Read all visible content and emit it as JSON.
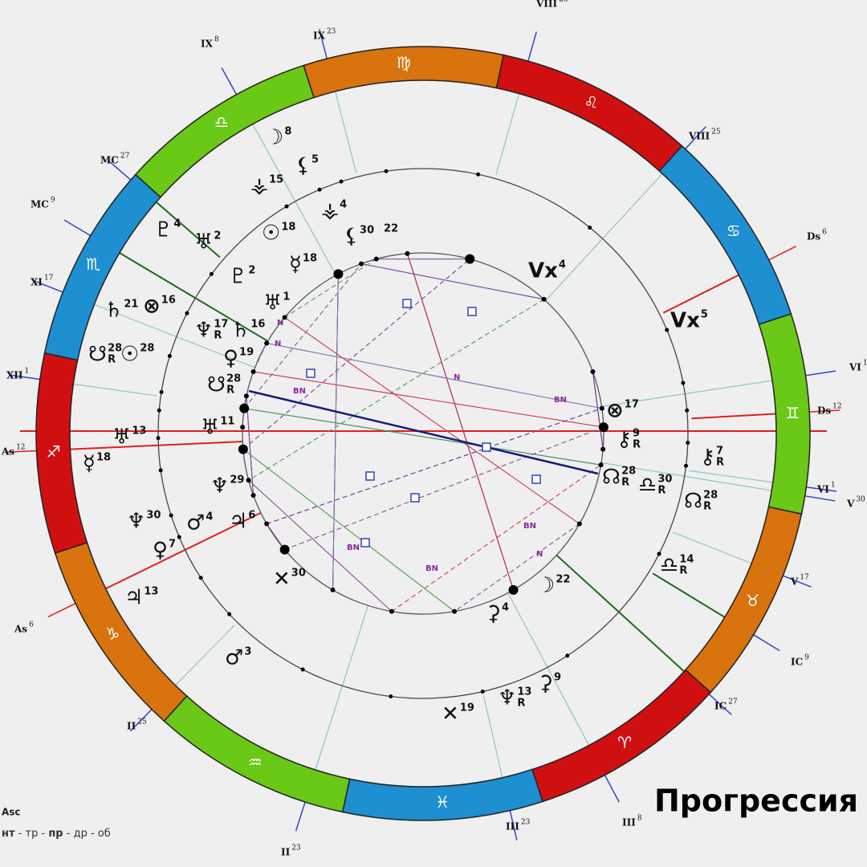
{
  "title": "Прогрессия",
  "legend": {
    "point": "Asc",
    "modes": [
      "нт",
      "тр",
      "пр",
      "др",
      "об"
    ],
    "separator": "-"
  },
  "signs": [
    {
      "glyph": "♍",
      "color": "#d9730d"
    },
    {
      "glyph": "♌",
      "color": "#d01010"
    },
    {
      "glyph": "♋",
      "color": "#1e8fd0"
    },
    {
      "glyph": "♊",
      "color": "#6ac816"
    },
    {
      "glyph": "♉",
      "color": "#d9730d"
    },
    {
      "glyph": "♈",
      "color": "#d01010"
    },
    {
      "glyph": "♓",
      "color": "#1e8fd0"
    },
    {
      "glyph": "♒",
      "color": "#6ac816"
    },
    {
      "glyph": "♑",
      "color": "#d9730d"
    },
    {
      "glyph": "♐",
      "color": "#d01010"
    },
    {
      "glyph": "♏",
      "color": "#1e8fd0"
    },
    {
      "glyph": "♎",
      "color": "#6ac816"
    }
  ],
  "cusps": [
    {
      "label": "VIII",
      "degree": "23"
    },
    {
      "label": "IX",
      "degree": "8"
    },
    {
      "label": "IX",
      "degree": "23"
    },
    {
      "label": "VIII",
      "degree": "25"
    },
    {
      "label": "MC",
      "degree": "27"
    },
    {
      "label": "MC",
      "degree": "9"
    },
    {
      "label": "Ds",
      "degree": "6"
    },
    {
      "label": "XI",
      "degree": "17"
    },
    {
      "label": "XII",
      "degree": "1"
    },
    {
      "label": "VI",
      "degree": "1"
    },
    {
      "label": "Ds",
      "degree": "12"
    },
    {
      "label": "As",
      "degree": "12"
    },
    {
      "label": "VI",
      "degree": "1"
    },
    {
      "label": "V",
      "degree": "30"
    },
    {
      "label": "V",
      "degree": "17"
    },
    {
      "label": "As",
      "degree": "6"
    },
    {
      "label": "IC",
      "degree": "9"
    },
    {
      "label": "IC",
      "degree": "27"
    },
    {
      "label": "II",
      "degree": "25"
    },
    {
      "label": "III",
      "degree": "8"
    },
    {
      "label": "III",
      "degree": "23"
    },
    {
      "label": "II",
      "degree": "23"
    }
  ],
  "planets": [
    {
      "glyph": "☽",
      "degree": "8"
    },
    {
      "glyph": "⚸",
      "degree": "5"
    },
    {
      "glyph": "⚶",
      "degree": "15"
    },
    {
      "glyph": "⚶",
      "degree": "4"
    },
    {
      "glyph": "☉",
      "degree": "18"
    },
    {
      "glyph": "⚸",
      "degree": "30",
      "degree2": "22"
    },
    {
      "glyph": "♇",
      "degree": "4"
    },
    {
      "glyph": "♅",
      "degree": "2"
    },
    {
      "glyph": "♇",
      "degree": "2"
    },
    {
      "glyph": "☿",
      "degree": "18"
    },
    {
      "glyph": "♅",
      "degree": "1"
    },
    {
      "glyph": "♄",
      "degree": "21"
    },
    {
      "glyph": "⊗",
      "degree": "16"
    },
    {
      "glyph": "♆",
      "degree": "17",
      "retro": "R"
    },
    {
      "glyph": "♄",
      "degree": "16"
    },
    {
      "glyph": "☋",
      "degree": "28",
      "retro": "R"
    },
    {
      "glyph": "☉",
      "degree": "28"
    },
    {
      "glyph": "♀",
      "degree": "19"
    },
    {
      "glyph": "☋",
      "degree": "28",
      "retro": "R"
    },
    {
      "glyph": "♅",
      "degree": "13"
    },
    {
      "glyph": "♅",
      "degree": "11"
    },
    {
      "glyph": "☿",
      "degree": "18"
    },
    {
      "glyph": "♆",
      "degree": "29"
    },
    {
      "glyph": "♂",
      "degree": "4"
    },
    {
      "glyph": "♃",
      "degree": "6"
    },
    {
      "glyph": "♆",
      "degree": "30"
    },
    {
      "glyph": "♀",
      "degree": "7"
    },
    {
      "glyph": "♃",
      "degree": "13"
    },
    {
      "glyph": "♂",
      "degree": "3"
    },
    {
      "glyph": "✕",
      "degree": "30"
    },
    {
      "glyph": "✕",
      "degree": "19"
    },
    {
      "glyph": "♆",
      "degree": "13",
      "retro": "R"
    },
    {
      "glyph": "⚳",
      "degree": "9"
    },
    {
      "glyph": "⚳",
      "degree": "4"
    },
    {
      "glyph": "☽",
      "degree": "22"
    },
    {
      "glyph": "♎",
      "degree": "14",
      "retro": "R"
    },
    {
      "glyph": "☊",
      "degree": "28",
      "retro": "R"
    },
    {
      "glyph": "⚷",
      "degree": "7",
      "retro": "R"
    },
    {
      "glyph": "⚷",
      "degree": "9",
      "retro": "R"
    },
    {
      "glyph": "⊗",
      "degree": "17"
    },
    {
      "glyph": "☊",
      "degree": "28",
      "retro": "R"
    },
    {
      "glyph": "♎",
      "degree": "30",
      "retro": "R"
    },
    {
      "glyph": "Vx",
      "degree": "5"
    },
    {
      "glyph": "Vx",
      "degree": "4"
    }
  ],
  "aspect_labels": [
    "BN",
    "BN",
    "BN",
    "BN",
    "BN",
    "N",
    "N",
    "N",
    "N"
  ]
}
